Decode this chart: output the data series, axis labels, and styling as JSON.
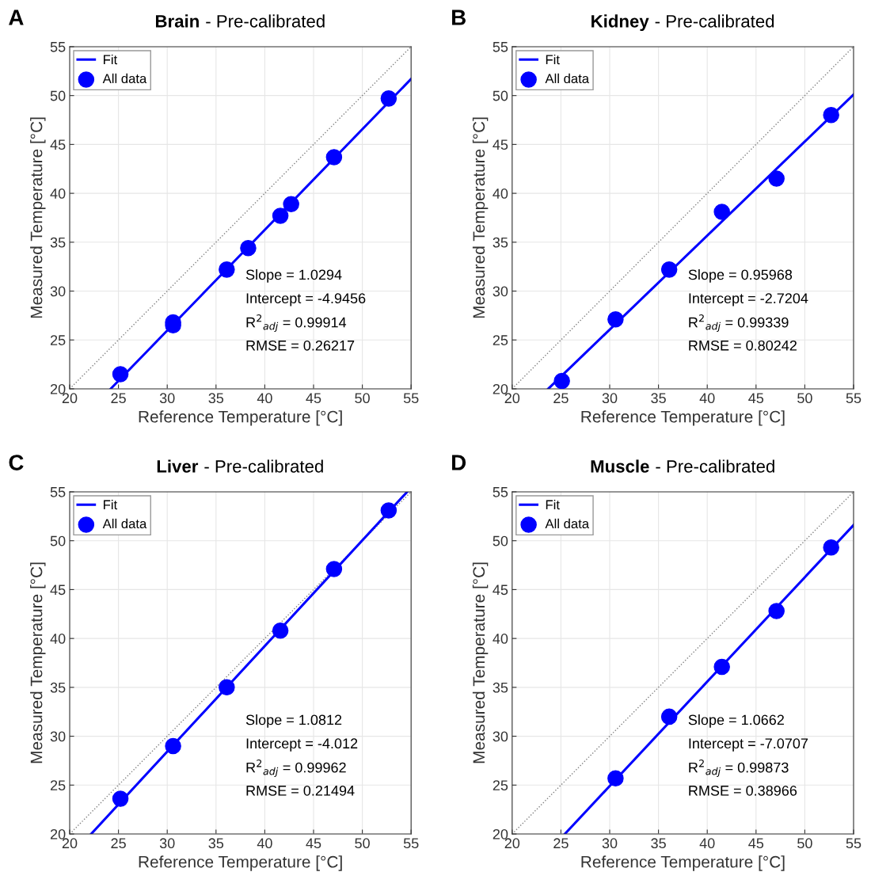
{
  "chart_data": [
    {
      "type": "scatter",
      "title": "Brain",
      "subtitle": "- Pre-calibrated",
      "xlabel": "Reference Temperature [°C]",
      "ylabel": "Measured Temperature [°C]",
      "annotations": [
        "A",
        "Slope = 1.0294",
        "Intercept = -4.9456",
        "R$^{2}$$_{adj}$ = 0.99914",
        "RMSE = 0.26217"
      ],
      "xlim": [
        20,
        55
      ],
      "ylim": [
        20,
        55
      ],
      "xticks": [
        20,
        25,
        30,
        35,
        40,
        45,
        50,
        55
      ],
      "yticks": [
        20,
        25,
        30,
        35,
        40,
        45,
        50,
        55
      ],
      "grid": true,
      "legend": "top left",
      "series": [
        {
          "type": "line",
          "color": "#808080",
          "line_style": "dotted",
          "marker": "none",
          "x": [
            20,
            55
          ],
          "values": [
            20,
            55
          ]
        },
        {
          "type": "line",
          "name": "Fit",
          "color": "#0000ff",
          "line_style": "solid",
          "marker": "none",
          "x": [
            24.2,
            55
          ],
          "values": [
            20,
            51.7
          ]
        },
        {
          "name": "All data",
          "color": "#0000ff",
          "marker": "circle",
          "x": [
            25.2,
            30.6,
            30.6,
            36.1,
            38.3,
            41.6,
            42.7,
            47.1,
            52.7
          ],
          "values": [
            21.5,
            26.5,
            26.8,
            32.2,
            34.4,
            37.7,
            38.9,
            43.7,
            49.7
          ]
        }
      ]
    },
    {
      "type": "scatter",
      "title": "Kidney",
      "subtitle": "- Pre-calibrated",
      "xlabel": "Reference Temperature [°C]",
      "ylabel": "Measured Temperature [°C]",
      "annotations": [
        "B",
        "Slope = 0.95968",
        "Intercept = -2.7204",
        "R$^{2}$$_{adj}$ = 0.99339",
        "RMSE = 0.80242"
      ],
      "xlim": [
        20,
        55
      ],
      "ylim": [
        20,
        55
      ],
      "xticks": [
        20,
        25,
        30,
        35,
        40,
        45,
        50,
        55
      ],
      "yticks": [
        20,
        25,
        30,
        35,
        40,
        45,
        50,
        55
      ],
      "grid": true,
      "legend": "top left",
      "series": [
        {
          "type": "line",
          "color": "#808080",
          "line_style": "dotted",
          "marker": "none",
          "x": [
            20,
            55
          ],
          "values": [
            20,
            55
          ]
        },
        {
          "type": "line",
          "name": "Fit",
          "color": "#0000ff",
          "line_style": "solid",
          "marker": "none",
          "x": [
            23.7,
            55
          ],
          "values": [
            20,
            50.1
          ]
        },
        {
          "name": "All data",
          "color": "#0000ff",
          "marker": "circle",
          "x": [
            25.1,
            30.6,
            36.1,
            41.5,
            47.1,
            52.7
          ],
          "values": [
            20.8,
            27.1,
            32.2,
            38.1,
            41.5,
            48.0
          ]
        }
      ]
    },
    {
      "type": "scatter",
      "title": "Liver",
      "subtitle": "- Pre-calibrated",
      "xlabel": "Reference Temperature [°C]",
      "ylabel": "Measured Temperature [°C]",
      "annotations": [
        "C",
        "Slope = 1.0812",
        "Intercept = -4.012",
        "R$^{2}$$_{adj}$ = 0.99962",
        "RMSE = 0.21494"
      ],
      "xlim": [
        20,
        55
      ],
      "ylim": [
        20,
        55
      ],
      "xticks": [
        20,
        25,
        30,
        35,
        40,
        45,
        50,
        55
      ],
      "yticks": [
        20,
        25,
        30,
        35,
        40,
        45,
        50,
        55
      ],
      "grid": true,
      "legend": "top left",
      "series": [
        {
          "type": "line",
          "color": "#808080",
          "line_style": "dotted",
          "marker": "none",
          "x": [
            20,
            55
          ],
          "values": [
            20,
            55
          ]
        },
        {
          "type": "line",
          "name": "Fit",
          "color": "#0000ff",
          "line_style": "solid",
          "marker": "none",
          "x": [
            22.2,
            54.6
          ],
          "values": [
            20,
            55
          ]
        },
        {
          "name": "All data",
          "color": "#0000ff",
          "marker": "circle",
          "x": [
            25.2,
            30.6,
            36.1,
            41.6,
            47.1,
            52.7
          ],
          "values": [
            23.6,
            29.0,
            35.0,
            40.8,
            47.1,
            53.1
          ]
        }
      ]
    },
    {
      "type": "scatter",
      "title": "Muscle",
      "subtitle": "- Pre-calibrated",
      "xlabel": "Reference Temperature [°C]",
      "ylabel": "Measured Temperature [°C]",
      "annotations": [
        "D",
        "Slope = 1.0662",
        "Intercept = -7.0707",
        "R$^{2}$$_{adj}$ = 0.99873",
        "RMSE = 0.38966"
      ],
      "xlim": [
        20,
        55
      ],
      "ylim": [
        20,
        55
      ],
      "xticks": [
        20,
        25,
        30,
        35,
        40,
        45,
        50,
        55
      ],
      "yticks": [
        20,
        25,
        30,
        35,
        40,
        45,
        50,
        55
      ],
      "grid": true,
      "legend": "top left",
      "series": [
        {
          "type": "line",
          "color": "#808080",
          "line_style": "dotted",
          "marker": "none",
          "x": [
            20,
            55
          ],
          "values": [
            20,
            55
          ]
        },
        {
          "type": "line",
          "name": "Fit",
          "color": "#0000ff",
          "line_style": "solid",
          "marker": "none",
          "x": [
            25.4,
            55
          ],
          "values": [
            20,
            51.6
          ]
        },
        {
          "name": "All data",
          "color": "#0000ff",
          "marker": "circle",
          "x": [
            30.6,
            36.1,
            41.5,
            47.1,
            52.7
          ],
          "values": [
            25.7,
            32.0,
            37.1,
            42.8,
            49.3
          ]
        }
      ]
    }
  ]
}
